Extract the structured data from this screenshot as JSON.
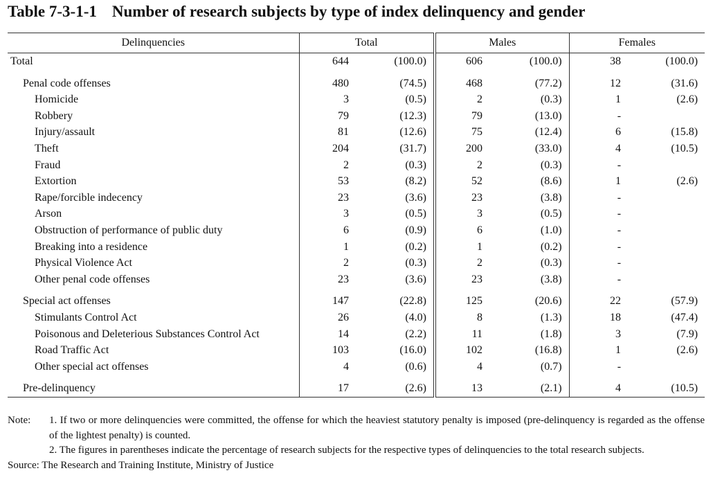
{
  "title": {
    "number": "Table 7-3-1-1",
    "text": "Number of research subjects by type of index delinquency and gender"
  },
  "headers": {
    "delinquencies": "Delinquencies",
    "total": "Total",
    "males": "Males",
    "females": "Females"
  },
  "rows": [
    {
      "label": "Total",
      "total": "644",
      "total_pct": "(100.0)",
      "males": "606",
      "males_pct": "(100.0)",
      "females": "38",
      "females_pct": "(100.0)"
    },
    {
      "label": "Penal code offenses",
      "total": "480",
      "total_pct": "(74.5)",
      "males": "468",
      "males_pct": "(77.2)",
      "females": "12",
      "females_pct": "(31.6)"
    },
    {
      "label": "Homicide",
      "total": "3",
      "total_pct": "(0.5)",
      "males": "2",
      "males_pct": "(0.3)",
      "females": "1",
      "females_pct": "(2.6)"
    },
    {
      "label": "Robbery",
      "total": "79",
      "total_pct": "(12.3)",
      "males": "79",
      "males_pct": "(13.0)",
      "females": "-",
      "females_pct": ""
    },
    {
      "label": "Injury/assault",
      "total": "81",
      "total_pct": "(12.6)",
      "males": "75",
      "males_pct": "(12.4)",
      "females": "6",
      "females_pct": "(15.8)"
    },
    {
      "label": "Theft",
      "total": "204",
      "total_pct": "(31.7)",
      "males": "200",
      "males_pct": "(33.0)",
      "females": "4",
      "females_pct": "(10.5)"
    },
    {
      "label": "Fraud",
      "total": "2",
      "total_pct": "(0.3)",
      "males": "2",
      "males_pct": "(0.3)",
      "females": "-",
      "females_pct": ""
    },
    {
      "label": "Extortion",
      "total": "53",
      "total_pct": "(8.2)",
      "males": "52",
      "males_pct": "(8.6)",
      "females": "1",
      "females_pct": "(2.6)"
    },
    {
      "label": "Rape/forcible indecency",
      "total": "23",
      "total_pct": "(3.6)",
      "males": "23",
      "males_pct": "(3.8)",
      "females": "-",
      "females_pct": ""
    },
    {
      "label": "Arson",
      "total": "3",
      "total_pct": "(0.5)",
      "males": "3",
      "males_pct": "(0.5)",
      "females": "-",
      "females_pct": ""
    },
    {
      "label": "Obstruction of performance of public duty",
      "total": "6",
      "total_pct": "(0.9)",
      "males": "6",
      "males_pct": "(1.0)",
      "females": "-",
      "females_pct": ""
    },
    {
      "label": "Breaking into a residence",
      "total": "1",
      "total_pct": "(0.2)",
      "males": "1",
      "males_pct": "(0.2)",
      "females": "-",
      "females_pct": ""
    },
    {
      "label": "Physical Violence Act",
      "total": "2",
      "total_pct": "(0.3)",
      "males": "2",
      "males_pct": "(0.3)",
      "females": "-",
      "females_pct": ""
    },
    {
      "label": "Other penal code offenses",
      "total": "23",
      "total_pct": "(3.6)",
      "males": "23",
      "males_pct": "(3.8)",
      "females": "-",
      "females_pct": ""
    },
    {
      "label": "Special act offenses",
      "total": "147",
      "total_pct": "(22.8)",
      "males": "125",
      "males_pct": "(20.6)",
      "females": "22",
      "females_pct": "(57.9)"
    },
    {
      "label": "Stimulants Control Act",
      "total": "26",
      "total_pct": "(4.0)",
      "males": "8",
      "males_pct": "(1.3)",
      "females": "18",
      "females_pct": "(47.4)"
    },
    {
      "label": "Poisonous and Deleterious Substances Control Act",
      "total": "14",
      "total_pct": "(2.2)",
      "males": "11",
      "males_pct": "(1.8)",
      "females": "3",
      "females_pct": "(7.9)"
    },
    {
      "label": "Road Traffic Act",
      "total": "103",
      "total_pct": "(16.0)",
      "males": "102",
      "males_pct": "(16.8)",
      "females": "1",
      "females_pct": "(2.6)"
    },
    {
      "label": "Other special act offenses",
      "total": "4",
      "total_pct": "(0.6)",
      "males": "4",
      "males_pct": "(0.7)",
      "females": "-",
      "females_pct": ""
    },
    {
      "label": "Pre-delinquency",
      "total": "17",
      "total_pct": "(2.6)",
      "males": "13",
      "males_pct": "(2.1)",
      "females": "4",
      "females_pct": "(10.5)"
    }
  ],
  "notes": {
    "label": "Note:",
    "items": [
      "1. If two or more delinquencies were committed, the offense for which the heaviest statutory penalty is imposed (pre-delinquency is regarded as the offense of the lightest penalty) is counted.",
      "2. The figures in parentheses indicate the percentage of research subjects for the respective types of delinquencies to the total research subjects."
    ],
    "source": "Source: The Research and Training Institute, Ministry of Justice"
  }
}
